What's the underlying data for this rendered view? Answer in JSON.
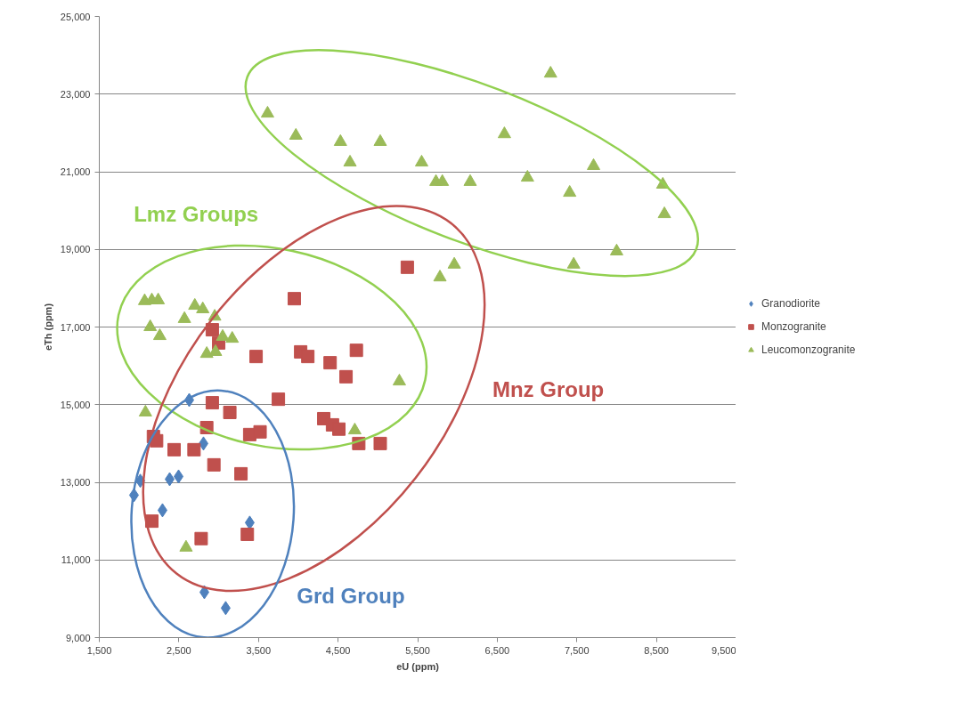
{
  "chart_data": {
    "type": "scatter",
    "xlabel": "eU (ppm)",
    "ylabel": "eTh (ppm)",
    "xlim": [
      1500,
      9500
    ],
    "xticks": [
      {
        "value": 1500,
        "label": "1,500"
      },
      {
        "value": 2500,
        "label": "2,500"
      },
      {
        "value": 3500,
        "label": "3,500"
      },
      {
        "value": 4500,
        "label": "4,500"
      },
      {
        "value": 5500,
        "label": "5,500"
      },
      {
        "value": 6500,
        "label": "6,500"
      },
      {
        "value": 7500,
        "label": "7,500"
      },
      {
        "value": 8500,
        "label": "8,500"
      },
      {
        "value": 9500,
        "label": "9,500"
      }
    ],
    "ylim": [
      9000,
      25000
    ],
    "yticks": [
      {
        "value": 9000,
        "label": "9,000"
      },
      {
        "value": 11000,
        "label": "11,000"
      },
      {
        "value": 13000,
        "label": "13,000"
      },
      {
        "value": 15000,
        "label": "15,000"
      },
      {
        "value": 17000,
        "label": "17,000"
      },
      {
        "value": 19000,
        "label": "19,000"
      },
      {
        "value": 21000,
        "label": "21,000"
      },
      {
        "value": 23000,
        "label": "23,000"
      },
      {
        "value": 25000,
        "label": "25,000"
      }
    ],
    "grid": "y",
    "legend": "right",
    "series": [
      {
        "name": "Granodiorite",
        "color": "#4f81bd",
        "marker": "diamond",
        "x": [
          2015,
          1936,
          2384,
          2496,
          2294,
          2630,
          2809,
          3390,
          2820,
          3088
        ],
        "values": [
          13040,
          12670,
          13080,
          13150,
          12280,
          15120,
          14000,
          11960,
          10170,
          9760
        ]
      },
      {
        "name": "Monzogranite",
        "color": "#c0504d",
        "marker": "square",
        "x": [
          5370,
          3950,
          2920,
          3000,
          3470,
          4030,
          4120,
          4400,
          4730,
          4600,
          3750,
          2920,
          3140,
          2850,
          2180,
          2220,
          2440,
          2690,
          2940,
          3280,
          3390,
          3520,
          4320,
          4430,
          4510,
          4760,
          5030,
          2160,
          2780,
          3360
        ],
        "values": [
          18540,
          17730,
          16930,
          16590,
          16240,
          16360,
          16240,
          16080,
          16400,
          15720,
          15140,
          15050,
          14800,
          14410,
          14180,
          14070,
          13840,
          13840,
          13450,
          13220,
          14230,
          14300,
          14640,
          14480,
          14370,
          14000,
          14000,
          12000,
          11550,
          11660
        ]
      },
      {
        "name": "Leucomonzogranite",
        "color": "#9bbb59",
        "marker": "triangle",
        "x": [
          3614,
          3970,
          4530,
          4650,
          5030,
          5550,
          5730,
          5810,
          6160,
          6590,
          6880,
          7170,
          7410,
          7710,
          8580,
          8600,
          8000,
          7460,
          5960,
          5780,
          2070,
          2160,
          2240,
          2700,
          2800,
          2570,
          2140,
          2260,
          2950,
          3050,
          3170,
          2850,
          2960,
          5270,
          4710,
          2080,
          2590
        ],
        "values": [
          22500,
          21930,
          21770,
          21240,
          21770,
          21240,
          20740,
          20740,
          20740,
          21970,
          20850,
          23530,
          20460,
          21150,
          20670,
          19910,
          18950,
          18610,
          18610,
          18280,
          17670,
          17690,
          17690,
          17550,
          17460,
          17210,
          17000,
          16770,
          17270,
          16750,
          16700,
          16310,
          16360,
          15600,
          14340,
          14800,
          11320
        ]
      }
    ],
    "annotations": [
      "Lmz Groups",
      "Mnz Group",
      "Grd Group"
    ]
  }
}
